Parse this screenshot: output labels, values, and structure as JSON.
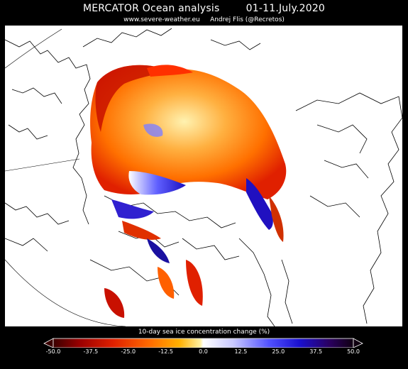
{
  "header": {
    "title": "MERCATOR Ocean analysis        01-11.July.2020",
    "subtitle": "www.severe-weather.eu     Andrej Flis (@Recretos)"
  },
  "colorbar": {
    "title": "10-day sea ice concentration change (%)",
    "ticks": [
      "-50.0",
      "-37.5",
      "-25.0",
      "-12.5",
      "0.0",
      "12.5",
      "25.0",
      "37.5",
      "50.0"
    ],
    "range": [
      -50,
      50
    ],
    "colors": [
      "#3a0000",
      "#9b0000",
      "#e02000",
      "#ff6a00",
      "#ffb000",
      "#fff0a0",
      "#ffffff",
      "#c8c8ff",
      "#5050ff",
      "#1a10d0",
      "#2a0060",
      "#100010"
    ]
  },
  "map": {
    "projection": "polar-stereographic",
    "region": "Arctic",
    "land_color": "#ffffff",
    "coastline_color": "#000000"
  }
}
